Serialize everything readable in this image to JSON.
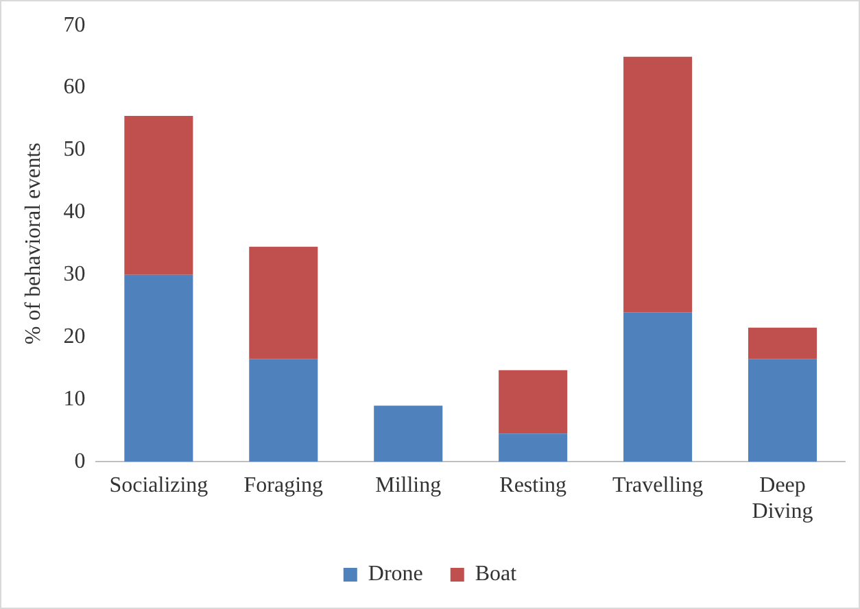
{
  "chart_data": {
    "type": "bar",
    "ylabel": "% of behavioral events",
    "categories": [
      "Socializing",
      "Foraging",
      "Milling",
      "Resting",
      "Travelling",
      "Deep Diving"
    ],
    "series": [
      {
        "name": "Drone",
        "color": "#4f81bd",
        "values": [
          30,
          16.5,
          9,
          4.5,
          24,
          16.5
        ]
      },
      {
        "name": "Boat",
        "color": "#c0504d",
        "values": [
          25.5,
          18,
          0,
          10.2,
          41,
          5
        ]
      }
    ],
    "stacked": true,
    "ylim": [
      0,
      70
    ],
    "yticks": [
      0,
      10,
      20,
      30,
      40,
      50,
      60,
      70
    ],
    "grid": false,
    "legend": "bottom"
  }
}
